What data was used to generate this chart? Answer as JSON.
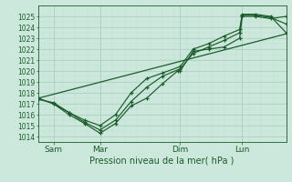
{
  "xlabel": "Pression niveau de la mer( hPa )",
  "bg_color": "#cce8dc",
  "grid_color_major": "#aacfbe",
  "grid_color_minor": "#c0ddd0",
  "line_color": "#1a5c2a",
  "ylim": [
    1013.5,
    1026.0
  ],
  "xlim": [
    0.0,
    9.6
  ],
  "yticks": [
    1014,
    1015,
    1016,
    1017,
    1018,
    1019,
    1020,
    1021,
    1022,
    1023,
    1024,
    1025
  ],
  "xtick_positions": [
    0.6,
    2.4,
    5.5,
    7.9
  ],
  "xtick_labels": [
    "Sam",
    "Mar",
    "Dim",
    "Lun"
  ],
  "vline_positions": [
    0.6,
    2.4,
    5.5,
    7.9
  ],
  "series1": {
    "x": [
      0.0,
      0.6,
      1.2,
      1.8,
      2.4,
      3.0,
      3.6,
      4.2,
      4.8,
      5.4,
      5.5,
      6.0,
      6.6,
      7.2,
      7.8,
      7.9,
      8.4,
      9.0,
      9.6
    ],
    "y": [
      1017.5,
      1017.0,
      1016.0,
      1015.2,
      1014.3,
      1015.2,
      1016.8,
      1017.5,
      1018.8,
      1020.0,
      1020.0,
      1021.8,
      1022.0,
      1022.2,
      1023.0,
      1025.0,
      1025.0,
      1024.8,
      1025.0
    ]
  },
  "series2": {
    "x": [
      0.0,
      0.6,
      1.2,
      1.8,
      2.4,
      3.0,
      3.6,
      4.2,
      4.8,
      5.5,
      6.0,
      6.6,
      7.2,
      7.8,
      7.9,
      8.4,
      9.0,
      9.6
    ],
    "y": [
      1017.4,
      1017.1,
      1016.2,
      1015.3,
      1014.6,
      1015.5,
      1017.2,
      1018.5,
      1019.5,
      1020.2,
      1021.6,
      1022.2,
      1022.8,
      1023.5,
      1025.1,
      1025.1,
      1024.9,
      1024.3
    ]
  },
  "series3": {
    "x": [
      0.0,
      0.6,
      1.2,
      1.8,
      2.4,
      3.0,
      3.6,
      4.2,
      4.8,
      5.5,
      6.0,
      6.6,
      7.2,
      7.8,
      7.9,
      8.4,
      9.0,
      9.6
    ],
    "y": [
      1017.5,
      1017.0,
      1016.2,
      1015.5,
      1015.0,
      1016.0,
      1018.0,
      1019.3,
      1019.8,
      1020.4,
      1022.0,
      1022.5,
      1023.2,
      1023.8,
      1025.2,
      1025.2,
      1025.0,
      1023.5
    ]
  },
  "series_straight": {
    "x": [
      0.0,
      9.6
    ],
    "y": [
      1017.5,
      1023.4
    ]
  }
}
